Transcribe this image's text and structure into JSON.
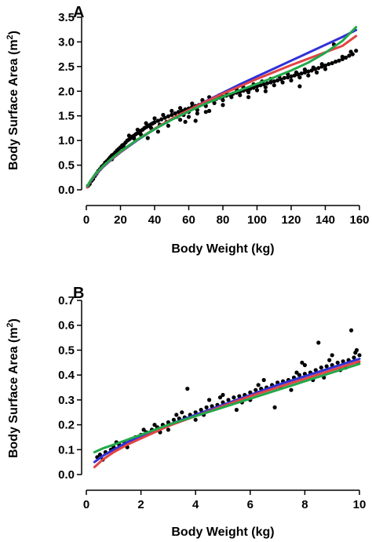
{
  "chart_data": [
    {
      "type": "scatter",
      "panel_label": "A",
      "title": "",
      "xlabel": "Body Weight (kg)",
      "ylabel": "Body Surface Area (m",
      "ylabel_sup": "2",
      "ylabel_end": ")",
      "xlim": [
        0,
        160
      ],
      "ylim": [
        0,
        3.5
      ],
      "xticks": [
        0,
        20,
        40,
        60,
        80,
        100,
        120,
        140,
        160
      ],
      "xtick_labels": [
        "0",
        "20",
        "40",
        "60",
        "80",
        "100",
        "120",
        "140",
        "160"
      ],
      "yticks": [
        0,
        0.5,
        1.0,
        1.5,
        2.0,
        2.5,
        3.0,
        3.5
      ],
      "ytick_labels": [
        "0.0",
        "0.5",
        "1.0",
        "1.5",
        "2.0",
        "2.5",
        "3.0",
        "3.5"
      ],
      "grid": false,
      "points_color": "#000000",
      "points": [
        [
          1,
          0.08
        ],
        [
          2,
          0.12
        ],
        [
          3,
          0.18
        ],
        [
          4,
          0.22
        ],
        [
          5,
          0.28
        ],
        [
          6,
          0.33
        ],
        [
          7,
          0.38
        ],
        [
          8,
          0.42
        ],
        [
          9,
          0.47
        ],
        [
          10,
          0.5
        ],
        [
          11,
          0.55
        ],
        [
          12,
          0.58
        ],
        [
          13,
          0.62
        ],
        [
          14,
          0.66
        ],
        [
          15,
          0.7
        ],
        [
          16,
          0.72
        ],
        [
          17,
          0.76
        ],
        [
          18,
          0.8
        ],
        [
          19,
          0.83
        ],
        [
          20,
          0.86
        ],
        [
          21,
          0.9
        ],
        [
          22,
          0.92
        ],
        [
          23,
          0.96
        ],
        [
          24,
          1.0
        ],
        [
          25,
          1.02
        ],
        [
          26,
          1.05
        ],
        [
          27,
          1.08
        ],
        [
          28,
          1.1
        ],
        [
          29,
          1.13
        ],
        [
          30,
          1.15
        ],
        [
          31,
          1.18
        ],
        [
          32,
          1.2
        ],
        [
          33,
          1.22
        ],
        [
          34,
          1.25
        ],
        [
          35,
          1.27
        ],
        [
          36,
          1.29
        ],
        [
          37,
          1.31
        ],
        [
          38,
          1.33
        ],
        [
          39,
          1.35
        ],
        [
          40,
          1.37
        ],
        [
          42,
          1.4
        ],
        [
          44,
          1.43
        ],
        [
          46,
          1.46
        ],
        [
          48,
          1.49
        ],
        [
          50,
          1.52
        ],
        [
          52,
          1.55
        ],
        [
          54,
          1.58
        ],
        [
          56,
          1.6
        ],
        [
          58,
          1.63
        ],
        [
          60,
          1.65
        ],
        [
          62,
          1.68
        ],
        [
          64,
          1.7
        ],
        [
          66,
          1.72
        ],
        [
          68,
          1.75
        ],
        [
          70,
          1.77
        ],
        [
          72,
          1.8
        ],
        [
          74,
          1.82
        ],
        [
          76,
          1.84
        ],
        [
          78,
          1.87
        ],
        [
          80,
          1.89
        ],
        [
          82,
          1.91
        ],
        [
          84,
          1.93
        ],
        [
          86,
          1.95
        ],
        [
          88,
          1.97
        ],
        [
          90,
          1.99
        ],
        [
          92,
          2.01
        ],
        [
          94,
          2.03
        ],
        [
          96,
          2.05
        ],
        [
          98,
          2.07
        ],
        [
          100,
          2.1
        ],
        [
          102,
          2.12
        ],
        [
          104,
          2.14
        ],
        [
          106,
          2.16
        ],
        [
          108,
          2.18
        ],
        [
          110,
          2.2
        ],
        [
          112,
          2.22
        ],
        [
          114,
          2.24
        ],
        [
          116,
          2.27
        ],
        [
          118,
          2.28
        ],
        [
          120,
          2.3
        ],
        [
          122,
          2.32
        ],
        [
          124,
          2.34
        ],
        [
          126,
          2.36
        ],
        [
          128,
          2.38
        ],
        [
          130,
          2.4
        ],
        [
          132,
          2.42
        ],
        [
          134,
          2.45
        ],
        [
          136,
          2.47
        ],
        [
          138,
          2.5
        ],
        [
          140,
          2.52
        ],
        [
          142,
          2.55
        ],
        [
          144,
          2.57
        ],
        [
          146,
          2.6
        ],
        [
          148,
          2.62
        ],
        [
          150,
          2.65
        ],
        [
          152,
          2.68
        ],
        [
          154,
          2.72
        ],
        [
          156,
          2.75
        ],
        [
          158,
          2.82
        ],
        [
          15,
          0.62
        ],
        [
          18,
          0.74
        ],
        [
          22,
          0.86
        ],
        [
          25,
          1.1
        ],
        [
          28,
          1.04
        ],
        [
          30,
          1.22
        ],
        [
          32,
          1.12
        ],
        [
          35,
          1.35
        ],
        [
          38,
          1.25
        ],
        [
          40,
          1.45
        ],
        [
          43,
          1.32
        ],
        [
          45,
          1.52
        ],
        [
          47,
          1.38
        ],
        [
          50,
          1.6
        ],
        [
          53,
          1.48
        ],
        [
          55,
          1.66
        ],
        [
          57,
          1.52
        ],
        [
          60,
          1.58
        ],
        [
          62,
          1.75
        ],
        [
          65,
          1.62
        ],
        [
          68,
          1.82
        ],
        [
          70,
          1.7
        ],
        [
          72,
          1.88
        ],
        [
          75,
          1.76
        ],
        [
          78,
          1.92
        ],
        [
          80,
          1.82
        ],
        [
          82,
          1.98
        ],
        [
          85,
          1.88
        ],
        [
          88,
          2.04
        ],
        [
          90,
          1.92
        ],
        [
          92,
          2.08
        ],
        [
          95,
          1.98
        ],
        [
          98,
          2.14
        ],
        [
          100,
          2.02
        ],
        [
          103,
          2.2
        ],
        [
          105,
          2.08
        ],
        [
          108,
          2.25
        ],
        [
          110,
          2.12
        ],
        [
          113,
          2.3
        ],
        [
          115,
          2.18
        ],
        [
          118,
          2.35
        ],
        [
          120,
          2.22
        ],
        [
          123,
          2.38
        ],
        [
          125,
          2.28
        ],
        [
          128,
          2.44
        ],
        [
          130,
          2.32
        ],
        [
          133,
          2.48
        ],
        [
          135,
          2.38
        ],
        [
          138,
          2.55
        ],
        [
          140,
          2.45
        ],
        [
          36,
          1.05
        ],
        [
          42,
          1.18
        ],
        [
          48,
          1.3
        ],
        [
          55,
          1.42
        ],
        [
          60,
          1.48
        ],
        [
          65,
          1.55
        ],
        [
          72,
          1.6
        ],
        [
          80,
          1.72
        ],
        [
          95,
          1.88
        ],
        [
          105,
          2.0
        ],
        [
          145,
          2.95
        ],
        [
          150,
          2.7
        ],
        [
          155,
          2.8
        ],
        [
          125,
          2.1
        ],
        [
          64,
          1.4
        ],
        [
          70,
          1.58
        ],
        [
          58,
          1.38
        ]
      ],
      "series": [
        {
          "color": "#3030d8",
          "x": [
            0.5,
            2,
            5,
            10,
            15,
            20,
            30,
            40,
            50,
            60,
            70,
            80,
            90,
            100,
            110,
            120,
            130,
            140,
            150,
            158
          ],
          "y": [
            0.05,
            0.14,
            0.29,
            0.47,
            0.62,
            0.76,
            1.01,
            1.23,
            1.43,
            1.62,
            1.8,
            1.97,
            2.14,
            2.3,
            2.46,
            2.62,
            2.78,
            2.94,
            3.1,
            3.24
          ]
        },
        {
          "color": "#e24444",
          "x": [
            0.5,
            2,
            5,
            10,
            15,
            20,
            30,
            40,
            50,
            60,
            70,
            80,
            90,
            100,
            110,
            120,
            130,
            140,
            150,
            158
          ],
          "y": [
            0.05,
            0.15,
            0.3,
            0.48,
            0.63,
            0.77,
            1.02,
            1.24,
            1.44,
            1.62,
            1.79,
            1.95,
            2.1,
            2.25,
            2.39,
            2.53,
            2.66,
            2.79,
            2.92,
            3.12
          ]
        },
        {
          "color": "#22a84a",
          "x": [
            0.5,
            2,
            5,
            10,
            15,
            20,
            30,
            40,
            50,
            60,
            70,
            80,
            90,
            100,
            110,
            120,
            130,
            140,
            150,
            158
          ],
          "y": [
            0.07,
            0.16,
            0.31,
            0.49,
            0.64,
            0.78,
            1.02,
            1.23,
            1.42,
            1.59,
            1.75,
            1.89,
            2.02,
            2.15,
            2.28,
            2.42,
            2.58,
            2.78,
            3.02,
            3.3
          ]
        }
      ]
    },
    {
      "type": "scatter",
      "panel_label": "B",
      "title": "",
      "xlabel": "Body Weight (kg)",
      "ylabel": "Body Surface Area (m",
      "ylabel_sup": "2",
      "ylabel_end": ")",
      "xlim": [
        0,
        10
      ],
      "ylim": [
        0,
        0.7
      ],
      "xticks": [
        0,
        2,
        4,
        6,
        8,
        10
      ],
      "xtick_labels": [
        "0",
        "2",
        "4",
        "6",
        "8",
        "10"
      ],
      "yticks": [
        0,
        0.1,
        0.2,
        0.3,
        0.4,
        0.5,
        0.6,
        0.7
      ],
      "ytick_labels": [
        "0.0",
        "0.1",
        "0.2",
        "0.3",
        "0.4",
        "0.5",
        "0.6",
        "0.7"
      ],
      "grid": false,
      "points_color": "#000000",
      "points": [
        [
          0.4,
          0.07
        ],
        [
          0.5,
          0.08
        ],
        [
          0.7,
          0.09
        ],
        [
          0.9,
          0.1
        ],
        [
          1.0,
          0.11
        ],
        [
          1.2,
          0.12
        ],
        [
          1.4,
          0.13
        ],
        [
          1.6,
          0.14
        ],
        [
          1.8,
          0.15
        ],
        [
          2.0,
          0.16
        ],
        [
          2.2,
          0.17
        ],
        [
          2.4,
          0.18
        ],
        [
          2.6,
          0.19
        ],
        [
          2.8,
          0.2
        ],
        [
          3.0,
          0.21
        ],
        [
          3.2,
          0.22
        ],
        [
          3.4,
          0.225
        ],
        [
          3.6,
          0.23
        ],
        [
          3.8,
          0.24
        ],
        [
          4.0,
          0.25
        ],
        [
          4.2,
          0.26
        ],
        [
          4.4,
          0.27
        ],
        [
          4.6,
          0.275
        ],
        [
          4.8,
          0.28
        ],
        [
          5.0,
          0.29
        ],
        [
          5.2,
          0.3
        ],
        [
          5.4,
          0.31
        ],
        [
          5.6,
          0.315
        ],
        [
          5.8,
          0.32
        ],
        [
          6.0,
          0.33
        ],
        [
          6.2,
          0.34
        ],
        [
          6.4,
          0.345
        ],
        [
          6.6,
          0.35
        ],
        [
          6.8,
          0.36
        ],
        [
          7.0,
          0.37
        ],
        [
          7.2,
          0.375
        ],
        [
          7.4,
          0.38
        ],
        [
          7.6,
          0.39
        ],
        [
          7.8,
          0.4
        ],
        [
          8.0,
          0.405
        ],
        [
          8.2,
          0.41
        ],
        [
          8.4,
          0.42
        ],
        [
          8.6,
          0.43
        ],
        [
          8.8,
          0.435
        ],
        [
          9.0,
          0.44
        ],
        [
          9.2,
          0.45
        ],
        [
          9.4,
          0.455
        ],
        [
          9.6,
          0.46
        ],
        [
          9.8,
          0.47
        ],
        [
          10.0,
          0.48
        ],
        [
          3.7,
          0.345
        ],
        [
          8.5,
          0.53
        ],
        [
          9.7,
          0.58
        ],
        [
          9.9,
          0.5
        ],
        [
          7.9,
          0.45
        ],
        [
          6.9,
          0.27
        ],
        [
          5.5,
          0.26
        ],
        [
          4.5,
          0.3
        ],
        [
          3.0,
          0.18
        ],
        [
          2.5,
          0.2
        ],
        [
          6.5,
          0.38
        ],
        [
          7.5,
          0.34
        ],
        [
          8.7,
          0.39
        ],
        [
          9.3,
          0.42
        ],
        [
          9.0,
          0.48
        ],
        [
          8.0,
          0.44
        ],
        [
          6.0,
          0.3
        ],
        [
          5.0,
          0.32
        ],
        [
          4.0,
          0.22
        ],
        [
          3.5,
          0.25
        ],
        [
          0.6,
          0.06
        ],
        [
          1.1,
          0.13
        ],
        [
          1.5,
          0.11
        ],
        [
          2.1,
          0.18
        ],
        [
          2.7,
          0.17
        ],
        [
          3.3,
          0.24
        ],
        [
          4.3,
          0.24
        ],
        [
          4.9,
          0.31
        ],
        [
          5.7,
          0.29
        ],
        [
          6.3,
          0.36
        ],
        [
          7.1,
          0.35
        ],
        [
          7.7,
          0.41
        ],
        [
          8.3,
          0.38
        ],
        [
          8.9,
          0.46
        ],
        [
          9.5,
          0.43
        ],
        [
          9.85,
          0.49
        ],
        [
          9.95,
          0.45
        ]
      ],
      "series": [
        {
          "color": "#3030d8",
          "x": [
            0.3,
            0.6,
            1,
            1.5,
            2,
            3,
            4,
            5,
            6,
            7,
            8,
            9,
            10
          ],
          "y": [
            0.05,
            0.075,
            0.1,
            0.13,
            0.155,
            0.2,
            0.24,
            0.28,
            0.32,
            0.36,
            0.395,
            0.43,
            0.465
          ]
        },
        {
          "color": "#e24444",
          "x": [
            0.3,
            0.6,
            1,
            1.5,
            2,
            3,
            4,
            5,
            6,
            7,
            8,
            9,
            10
          ],
          "y": [
            0.03,
            0.06,
            0.09,
            0.12,
            0.145,
            0.195,
            0.235,
            0.275,
            0.315,
            0.35,
            0.385,
            0.42,
            0.455
          ]
        },
        {
          "color": "#22a84a",
          "x": [
            0.3,
            0.6,
            1,
            1.5,
            2,
            3,
            4,
            5,
            6,
            7,
            8,
            9,
            10
          ],
          "y": [
            0.09,
            0.105,
            0.12,
            0.14,
            0.16,
            0.2,
            0.235,
            0.27,
            0.305,
            0.34,
            0.375,
            0.41,
            0.445
          ]
        }
      ]
    }
  ]
}
